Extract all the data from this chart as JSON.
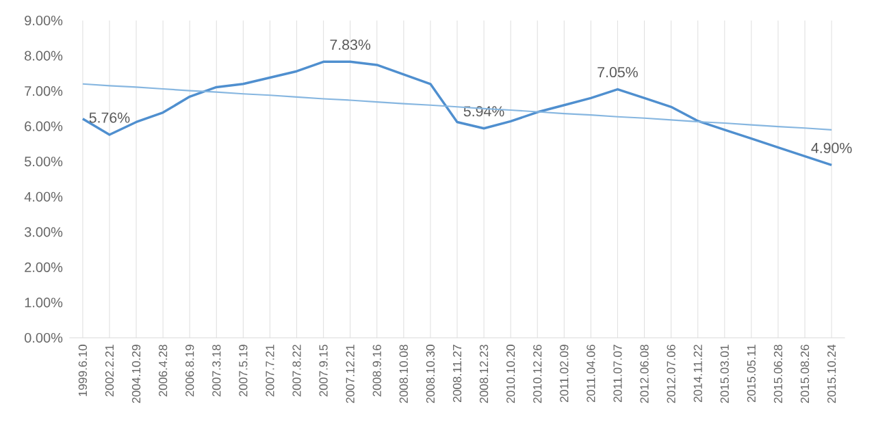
{
  "chart_data": {
    "type": "line",
    "categories": [
      "1999.6.10",
      "2002.2.21",
      "2004.10.29",
      "2006.4.28",
      "2006.8.19",
      "2007.3.18",
      "2007.5.19",
      "2007.7.21",
      "2007.8.22",
      "2007.9.15",
      "2007.12.21",
      "2008.9.16",
      "2008.10.08",
      "2008.10.30",
      "2008.11.27",
      "2008.12.23",
      "2010.10.20",
      "2010.12.26",
      "2011.02.09",
      "2011.04.06",
      "2011.07.07",
      "2012.06.08",
      "2012.07.06",
      "2014.11.22",
      "2015.03.01",
      "2015.05.11",
      "2015.06.28",
      "2015.08.26",
      "2015.10.24"
    ],
    "series": [
      {
        "color": "#4f8fcf",
        "values": [
          6.21,
          5.76,
          6.12,
          6.39,
          6.84,
          7.11,
          7.2,
          7.38,
          7.56,
          7.83,
          7.83,
          7.74,
          7.47,
          7.2,
          6.12,
          5.94,
          6.14,
          6.4,
          6.6,
          6.8,
          7.05,
          6.8,
          6.55,
          6.15,
          5.9,
          5.65,
          5.4,
          5.15,
          4.9
        ],
        "value_labels": [
          null,
          "5.76%",
          null,
          null,
          null,
          null,
          null,
          null,
          null,
          null,
          "7.83%",
          null,
          null,
          null,
          null,
          "5.94%",
          null,
          null,
          null,
          null,
          "7.05%",
          null,
          null,
          null,
          null,
          null,
          null,
          null,
          "4.90%"
        ]
      },
      {
        "type": "line",
        "color": "#86b6e0",
        "values": [
          7.2,
          7.15,
          7.11,
          7.06,
          7.01,
          6.97,
          6.92,
          6.88,
          6.83,
          6.78,
          6.74,
          6.69,
          6.64,
          6.6,
          6.55,
          6.5,
          6.46,
          6.41,
          6.36,
          6.32,
          6.27,
          6.23,
          6.18,
          6.13,
          6.09,
          6.04,
          5.99,
          5.95,
          5.9
        ]
      }
    ],
    "ylim": [
      0,
      9
    ],
    "yticks": [
      {
        "value": 0,
        "label": "0.00%"
      },
      {
        "value": 1,
        "label": "1.00%"
      },
      {
        "value": 2,
        "label": "2.00%"
      },
      {
        "value": 3,
        "label": "3.00%"
      },
      {
        "value": 4,
        "label": "4.00%"
      },
      {
        "value": 5,
        "label": "5.00%"
      },
      {
        "value": 6,
        "label": "6.00%"
      },
      {
        "value": 7,
        "label": "7.00%"
      },
      {
        "value": 8,
        "label": "8.00%"
      },
      {
        "value": 9,
        "label": "9.00%"
      }
    ],
    "grid": "x",
    "marker": "none",
    "line_style": "solid"
  }
}
